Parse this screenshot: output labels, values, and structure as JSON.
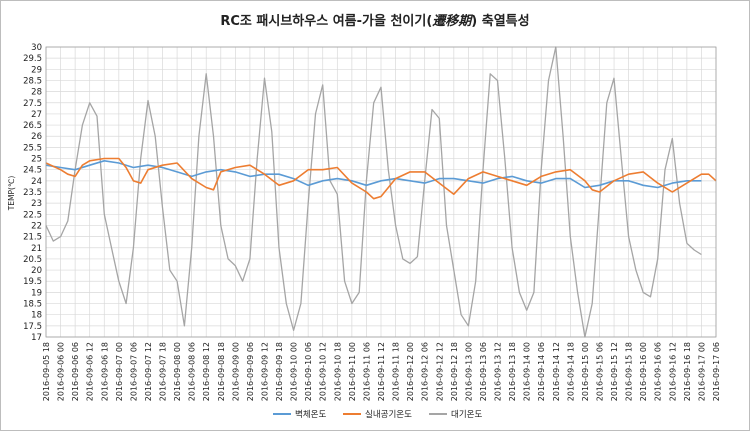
{
  "chart_data": {
    "type": "line",
    "title": "RC조 패시브하우스 여름-가을 천이기(遷移期) 축열특성",
    "title_parts": {
      "prefix": "RC조 패시브하우스 여름-가을 천이기(",
      "emphasis": "遷移期",
      "suffix": ") 축열특성"
    },
    "xlabel": "",
    "ylabel": "TEMP(℃)",
    "ylim": [
      17,
      30
    ],
    "yticks": [
      "17",
      "17.5",
      "18",
      "18.5",
      "19",
      "19.5",
      "20",
      "20.5",
      "21",
      "21.5",
      "22",
      "22.5",
      "23",
      "23.5",
      "24",
      "24.5",
      "25",
      "25.5",
      "26",
      "26.5",
      "27",
      "27.5",
      "28",
      "28.5",
      "29",
      "29.5",
      "30"
    ],
    "x_tick_labels": [
      "2016-09-05 18",
      "2016-09-06 00",
      "2016-09-06 06",
      "2016-09-06 12",
      "2016-09-06 18",
      "2016-09-07 00",
      "2016-09-07 06",
      "2016-09-07 12",
      "2016-09-07 18",
      "2016-09-08 00",
      "2016-09-08 06",
      "2016-09-08 12",
      "2016-09-08 18",
      "2016-09-09 00",
      "2016-09-09 06",
      "2016-09-09 12",
      "2016-09-09 18",
      "2016-09-10 00",
      "2016-09-10 06",
      "2016-09-10 12",
      "2016-09-10 18",
      "2016-09-11 00",
      "2016-09-11 06",
      "2016-09-11 12",
      "2016-09-11 18",
      "2016-09-12 00",
      "2016-09-12 06",
      "2016-09-12 12",
      "2016-09-12 18",
      "2016-09-13 00",
      "2016-09-13 06",
      "2016-09-13 12",
      "2016-09-13 18",
      "2016-09-14 00",
      "2016-09-14 06",
      "2016-09-14 12",
      "2016-09-14 18",
      "2016-09-15 00",
      "2016-09-15 06",
      "2016-09-15 12",
      "2016-09-15 18",
      "2016-09-16 00",
      "2016-09-16 06",
      "2016-09-16 12",
      "2016-09-16 18",
      "2016-09-17 00",
      "2016-09-17 06"
    ],
    "grid": true,
    "legend_position": "bottom",
    "series": [
      {
        "name": "벽체온도",
        "color": "#5b9bd5",
        "points": [
          [
            "2016-09-05 18",
            24.7
          ],
          [
            "2016-09-06 00",
            24.6
          ],
          [
            "2016-09-06 06",
            24.5
          ],
          [
            "2016-09-06 12",
            24.7
          ],
          [
            "2016-09-06 18",
            24.9
          ],
          [
            "2016-09-07 00",
            24.8
          ],
          [
            "2016-09-07 06",
            24.6
          ],
          [
            "2016-09-07 12",
            24.7
          ],
          [
            "2016-09-07 18",
            24.6
          ],
          [
            "2016-09-08 00",
            24.4
          ],
          [
            "2016-09-08 06",
            24.2
          ],
          [
            "2016-09-08 12",
            24.4
          ],
          [
            "2016-09-08 18",
            24.5
          ],
          [
            "2016-09-09 00",
            24.4
          ],
          [
            "2016-09-09 06",
            24.2
          ],
          [
            "2016-09-09 12",
            24.3
          ],
          [
            "2016-09-09 18",
            24.3
          ],
          [
            "2016-09-10 00",
            24.1
          ],
          [
            "2016-09-10 06",
            23.8
          ],
          [
            "2016-09-10 12",
            24.0
          ],
          [
            "2016-09-10 18",
            24.1
          ],
          [
            "2016-09-11 00",
            24.0
          ],
          [
            "2016-09-11 06",
            23.8
          ],
          [
            "2016-09-11 12",
            24.0
          ],
          [
            "2016-09-11 18",
            24.1
          ],
          [
            "2016-09-12 00",
            24.0
          ],
          [
            "2016-09-12 06",
            23.9
          ],
          [
            "2016-09-12 12",
            24.1
          ],
          [
            "2016-09-12 18",
            24.1
          ],
          [
            "2016-09-13 00",
            24.0
          ],
          [
            "2016-09-13 06",
            23.9
          ],
          [
            "2016-09-13 12",
            24.1
          ],
          [
            "2016-09-13 18",
            24.2
          ],
          [
            "2016-09-14 00",
            24.0
          ],
          [
            "2016-09-14 06",
            23.9
          ],
          [
            "2016-09-14 12",
            24.1
          ],
          [
            "2016-09-14 18",
            24.1
          ],
          [
            "2016-09-15 00",
            23.7
          ],
          [
            "2016-09-15 06",
            23.8
          ],
          [
            "2016-09-15 12",
            24.0
          ],
          [
            "2016-09-15 18",
            24.0
          ],
          [
            "2016-09-16 00",
            23.8
          ],
          [
            "2016-09-16 06",
            23.7
          ],
          [
            "2016-09-16 12",
            23.9
          ],
          [
            "2016-09-16 18",
            24.0
          ],
          [
            "2016-09-17 00",
            24.0
          ]
        ]
      },
      {
        "name": "실내공기온도",
        "color": "#ed7d31",
        "points": [
          [
            "2016-09-05 18",
            24.8
          ],
          [
            "2016-09-06 00",
            24.5
          ],
          [
            "2016-09-06 03",
            24.3
          ],
          [
            "2016-09-06 06",
            24.2
          ],
          [
            "2016-09-06 09",
            24.7
          ],
          [
            "2016-09-06 12",
            24.9
          ],
          [
            "2016-09-06 18",
            25.0
          ],
          [
            "2016-09-07 00",
            25.0
          ],
          [
            "2016-09-07 03",
            24.6
          ],
          [
            "2016-09-07 06",
            24.0
          ],
          [
            "2016-09-07 09",
            23.9
          ],
          [
            "2016-09-07 12",
            24.5
          ],
          [
            "2016-09-07 18",
            24.7
          ],
          [
            "2016-09-08 00",
            24.8
          ],
          [
            "2016-09-08 06",
            24.1
          ],
          [
            "2016-09-08 12",
            23.7
          ],
          [
            "2016-09-08 15",
            23.6
          ],
          [
            "2016-09-08 18",
            24.4
          ],
          [
            "2016-09-09 00",
            24.6
          ],
          [
            "2016-09-09 06",
            24.7
          ],
          [
            "2016-09-09 12",
            24.3
          ],
          [
            "2016-09-09 18",
            23.8
          ],
          [
            "2016-09-10 00",
            24.0
          ],
          [
            "2016-09-10 06",
            24.5
          ],
          [
            "2016-09-10 12",
            24.5
          ],
          [
            "2016-09-10 18",
            24.6
          ],
          [
            "2016-09-11 00",
            23.9
          ],
          [
            "2016-09-11 06",
            23.5
          ],
          [
            "2016-09-11 09",
            23.2
          ],
          [
            "2016-09-11 12",
            23.3
          ],
          [
            "2016-09-11 18",
            24.1
          ],
          [
            "2016-09-12 00",
            24.4
          ],
          [
            "2016-09-12 06",
            24.4
          ],
          [
            "2016-09-12 12",
            23.9
          ],
          [
            "2016-09-12 18",
            23.4
          ],
          [
            "2016-09-13 00",
            24.1
          ],
          [
            "2016-09-13 06",
            24.4
          ],
          [
            "2016-09-13 12",
            24.2
          ],
          [
            "2016-09-13 18",
            24.0
          ],
          [
            "2016-09-14 00",
            23.8
          ],
          [
            "2016-09-14 06",
            24.2
          ],
          [
            "2016-09-14 12",
            24.4
          ],
          [
            "2016-09-14 18",
            24.5
          ],
          [
            "2016-09-15 00",
            24.0
          ],
          [
            "2016-09-15 03",
            23.6
          ],
          [
            "2016-09-15 06",
            23.5
          ],
          [
            "2016-09-15 12",
            24.0
          ],
          [
            "2016-09-15 18",
            24.3
          ],
          [
            "2016-09-16 00",
            24.4
          ],
          [
            "2016-09-16 06",
            23.9
          ],
          [
            "2016-09-16 12",
            23.5
          ],
          [
            "2016-09-16 18",
            23.9
          ],
          [
            "2016-09-17 00",
            24.3
          ],
          [
            "2016-09-17 03",
            24.3
          ],
          [
            "2016-09-17 06",
            24.0
          ]
        ]
      },
      {
        "name": "대기온도",
        "color": "#a5a5a5",
        "points": [
          [
            "2016-09-05 18",
            22.0
          ],
          [
            "2016-09-05 21",
            21.3
          ],
          [
            "2016-09-06 00",
            21.5
          ],
          [
            "2016-09-06 03",
            22.2
          ],
          [
            "2016-09-06 06",
            24.5
          ],
          [
            "2016-09-06 09",
            26.5
          ],
          [
            "2016-09-06 12",
            27.5
          ],
          [
            "2016-09-06 15",
            26.9
          ],
          [
            "2016-09-06 18",
            22.5
          ],
          [
            "2016-09-06 21",
            21.0
          ],
          [
            "2016-09-07 00",
            19.5
          ],
          [
            "2016-09-07 03",
            18.5
          ],
          [
            "2016-09-07 06",
            21.0
          ],
          [
            "2016-09-07 09",
            25.0
          ],
          [
            "2016-09-07 12",
            27.6
          ],
          [
            "2016-09-07 15",
            26.0
          ],
          [
            "2016-09-07 18",
            22.8
          ],
          [
            "2016-09-07 21",
            20.0
          ],
          [
            "2016-09-08 00",
            19.5
          ],
          [
            "2016-09-08 03",
            17.5
          ],
          [
            "2016-09-08 06",
            21.0
          ],
          [
            "2016-09-08 09",
            26.0
          ],
          [
            "2016-09-08 12",
            28.8
          ],
          [
            "2016-09-08 15",
            26.0
          ],
          [
            "2016-09-08 18",
            22.0
          ],
          [
            "2016-09-08 21",
            20.5
          ],
          [
            "2016-09-09 00",
            20.2
          ],
          [
            "2016-09-09 03",
            19.5
          ],
          [
            "2016-09-09 06",
            20.5
          ],
          [
            "2016-09-09 09",
            25.0
          ],
          [
            "2016-09-09 12",
            28.6
          ],
          [
            "2016-09-09 15",
            26.2
          ],
          [
            "2016-09-09 18",
            21.0
          ],
          [
            "2016-09-09 21",
            18.5
          ],
          [
            "2016-09-10 00",
            17.3
          ],
          [
            "2016-09-10 03",
            18.5
          ],
          [
            "2016-09-10 06",
            23.0
          ],
          [
            "2016-09-10 09",
            27.0
          ],
          [
            "2016-09-10 12",
            28.3
          ],
          [
            "2016-09-10 15",
            24.0
          ],
          [
            "2016-09-10 18",
            23.4
          ],
          [
            "2016-09-10 21",
            19.5
          ],
          [
            "2016-09-11 00",
            18.5
          ],
          [
            "2016-09-11 03",
            19.0
          ],
          [
            "2016-09-11 06",
            24.0
          ],
          [
            "2016-09-11 09",
            27.5
          ],
          [
            "2016-09-11 12",
            28.2
          ],
          [
            "2016-09-11 15",
            24.5
          ],
          [
            "2016-09-11 18",
            22.0
          ],
          [
            "2016-09-11 21",
            20.5
          ],
          [
            "2016-09-12 00",
            20.3
          ],
          [
            "2016-09-12 03",
            20.6
          ],
          [
            "2016-09-12 06",
            24.0
          ],
          [
            "2016-09-12 09",
            27.2
          ],
          [
            "2016-09-12 12",
            26.8
          ],
          [
            "2016-09-12 15",
            22.0
          ],
          [
            "2016-09-12 18",
            20.0
          ],
          [
            "2016-09-12 21",
            18.0
          ],
          [
            "2016-09-13 00",
            17.5
          ],
          [
            "2016-09-13 03",
            19.5
          ],
          [
            "2016-09-13 06",
            24.5
          ],
          [
            "2016-09-13 09",
            28.8
          ],
          [
            "2016-09-13 12",
            28.5
          ],
          [
            "2016-09-13 15",
            25.0
          ],
          [
            "2016-09-13 18",
            21.0
          ],
          [
            "2016-09-13 21",
            19.0
          ],
          [
            "2016-09-14 00",
            18.2
          ],
          [
            "2016-09-14 03",
            19.0
          ],
          [
            "2016-09-14 06",
            24.5
          ],
          [
            "2016-09-14 09",
            28.5
          ],
          [
            "2016-09-14 12",
            30.0
          ],
          [
            "2016-09-14 15",
            26.0
          ],
          [
            "2016-09-14 18",
            21.5
          ],
          [
            "2016-09-14 21",
            19.0
          ],
          [
            "2016-09-15 00",
            17.0
          ],
          [
            "2016-09-15 03",
            18.5
          ],
          [
            "2016-09-15 06",
            23.0
          ],
          [
            "2016-09-15 09",
            27.5
          ],
          [
            "2016-09-15 12",
            28.6
          ],
          [
            "2016-09-15 15",
            25.0
          ],
          [
            "2016-09-15 18",
            21.5
          ],
          [
            "2016-09-15 21",
            20.0
          ],
          [
            "2016-09-16 00",
            19.0
          ],
          [
            "2016-09-16 03",
            18.8
          ],
          [
            "2016-09-16 06",
            20.5
          ],
          [
            "2016-09-16 09",
            24.5
          ],
          [
            "2016-09-16 12",
            25.9
          ],
          [
            "2016-09-16 15",
            23.0
          ],
          [
            "2016-09-16 18",
            21.2
          ],
          [
            "2016-09-16 21",
            20.9
          ],
          [
            "2016-09-17 00",
            20.7
          ]
        ]
      }
    ]
  }
}
